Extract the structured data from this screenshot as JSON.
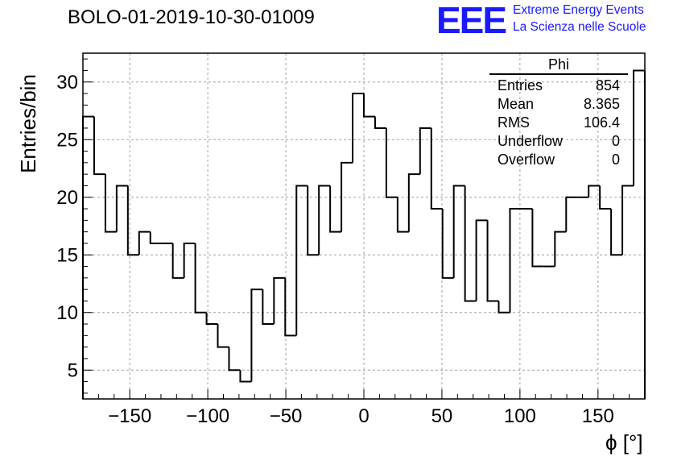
{
  "title": "BOLO-01-2019-10-30-01009",
  "logo": {
    "mark": "EEE",
    "line1": "Extreme Energy Events",
    "line2": "La Scienza nelle Scuole",
    "color": "#1a1aff"
  },
  "stats": {
    "name": "Phi",
    "rows": [
      {
        "label": "Entries",
        "value": "854"
      },
      {
        "label": "Mean",
        "value": "8.365"
      },
      {
        "label": "RMS",
        "value": "106.4"
      },
      {
        "label": "Underflow",
        "value": "0"
      },
      {
        "label": "Overflow",
        "value": "0"
      }
    ]
  },
  "chart_data": {
    "type": "histogram",
    "xlabel": "ϕ [°]",
    "ylabel": "Entries/bin",
    "xlim": [
      -180,
      180
    ],
    "ylim": [
      2.5,
      32.5
    ],
    "bin_width": 7.2,
    "bin_edges_start": -180,
    "xticks": [
      -150,
      -100,
      -50,
      0,
      50,
      100,
      150
    ],
    "xtick_labels": [
      "−150",
      "−100",
      "−50",
      "0",
      "50",
      "100",
      "150"
    ],
    "yticks": [
      5,
      10,
      15,
      20,
      25,
      30
    ],
    "grid": true,
    "values": [
      27,
      22,
      17,
      21,
      15,
      17,
      16,
      16,
      13,
      16,
      10,
      9,
      7,
      5,
      4,
      12,
      9,
      13,
      8,
      21,
      15,
      21,
      17,
      23,
      29,
      27,
      26,
      20,
      17,
      22,
      26,
      19,
      13,
      21,
      11,
      18,
      11,
      10,
      19,
      19,
      14,
      14,
      17,
      20,
      20,
      21,
      19,
      15,
      21,
      31
    ]
  }
}
